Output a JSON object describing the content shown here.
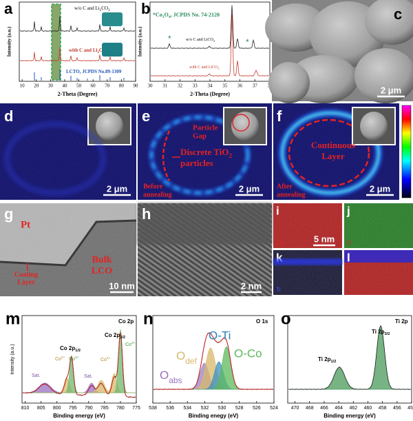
{
  "panels": {
    "a": {
      "label": "a",
      "curve_labels": [
        [
          "w/o C and Li",
          "2",
          "CO",
          "3"
        ],
        [
          "with C and Li",
          "2",
          "CO",
          "3"
        ],
        [
          "LCTO, JCPDS No.89-1309"
        ]
      ],
      "xlabel": "2-Theta (Degree)",
      "ylabel": "Intensity (a.u.)",
      "xlim": [
        8,
        90
      ],
      "xticks": [
        10,
        20,
        30,
        40,
        50,
        60,
        70,
        80,
        90
      ]
    },
    "b": {
      "label": "b",
      "reference": [
        "*Co",
        "3",
        "O",
        "4",
        ", JCPDS No. 74-2120"
      ],
      "curve_labels": [
        [
          "w/o C and LiCO",
          "3"
        ],
        [
          "with C and LiCO",
          "3"
        ]
      ],
      "xlabel": "2-Theta (Degree)",
      "ylabel": "Intensity (a.u.)",
      "xlim": [
        30,
        38
      ],
      "xticks": [
        30,
        31,
        32,
        33,
        34,
        35,
        36,
        37,
        38
      ]
    },
    "c": {
      "label": "c",
      "scale_bar": "2 μm"
    },
    "d": {
      "label": "d",
      "scale_bar": "2 μm"
    },
    "e": {
      "label": "e",
      "scale_bar": "2 μm",
      "gap": [
        "Particle",
        "Gap"
      ],
      "particles": [
        [
          "Discrete TiO",
          "2"
        ],
        [
          "particles"
        ]
      ],
      "state": [
        "Before",
        "annealing"
      ]
    },
    "f": {
      "label": "f",
      "scale_bar": "2 μm",
      "layer": [
        "Continuous",
        "Layer"
      ],
      "state": [
        "After",
        "annealing"
      ]
    },
    "g": {
      "label": "g",
      "scale_bar": "10 nm",
      "pt": "Pt",
      "bulk": [
        "Bulk",
        "LCO"
      ],
      "coating": [
        "Coating",
        "Layer"
      ]
    },
    "h": {
      "label": "h",
      "scale_bar": "2 nm"
    },
    "i": {
      "label": "i",
      "element": "Co",
      "scale_bar": "5 nm"
    },
    "j": {
      "label": "j",
      "element": "O"
    },
    "k": {
      "label": "k",
      "element": "Ti"
    },
    "l": {
      "label": "l"
    },
    "m": {
      "label": "m",
      "title": "Co 2p",
      "peak1": [
        "Co 2p",
        "1/2"
      ],
      "peak3": [
        "Co 2p",
        "3/2"
      ],
      "co2a": [
        "Co",
        "2+"
      ],
      "co3a": [
        "Co",
        "3+"
      ],
      "co2b": [
        "Co",
        "2+"
      ],
      "co3b": [
        "Co",
        "3+"
      ],
      "sat1": "Sat.",
      "sat2": "Sat.",
      "xlabel": "Binding energy (eV)",
      "ylabel": "Intensity (a.u.)",
      "xlim": [
        811,
        775
      ],
      "xticks": [
        810,
        805,
        800,
        795,
        790,
        785,
        780,
        775
      ]
    },
    "n": {
      "label": "n",
      "title": "O 1s",
      "oti": "O-Ti",
      "oco": "O-Co",
      "odef": [
        "O",
        "def"
      ],
      "oabs": [
        "O",
        "abs"
      ],
      "xlabel": "Binding enegy (eV)",
      "xlim": [
        538,
        524
      ],
      "xticks": [
        538,
        536,
        534,
        532,
        530,
        528,
        526,
        524
      ]
    },
    "o": {
      "label": "o",
      "title": "Ti 2p",
      "peak1": [
        "Ti 2p",
        "1/2"
      ],
      "peak3": [
        "Ti 2p",
        "3/2"
      ],
      "xlabel": "Binding energy (eV)",
      "xlim": [
        471,
        454
      ],
      "xticks": [
        470,
        468,
        466,
        464,
        462,
        460,
        458,
        456,
        454
      ]
    }
  }
}
